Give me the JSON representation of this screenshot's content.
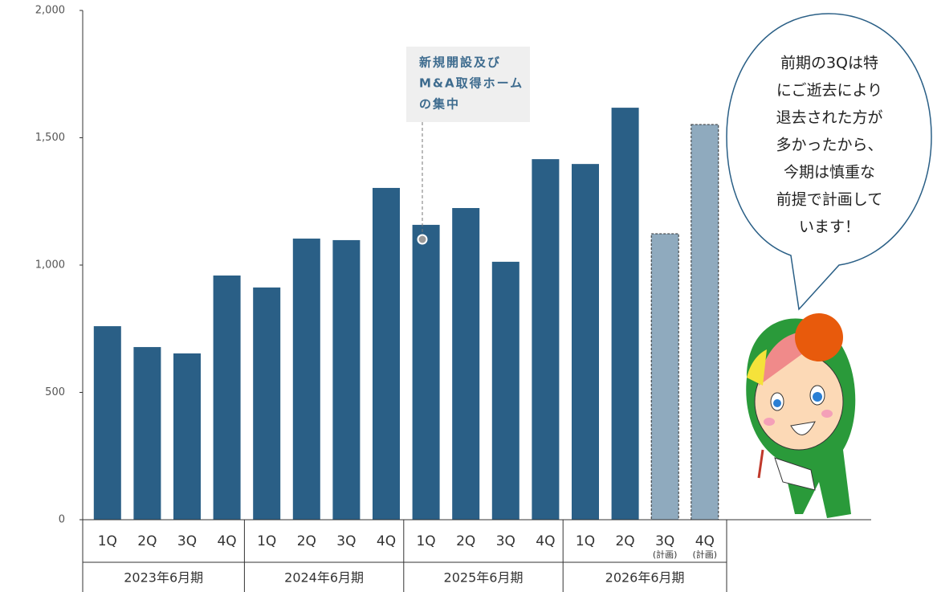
{
  "chart_data": {
    "type": "bar",
    "categories": [
      "1Q",
      "2Q",
      "3Q",
      "4Q",
      "1Q",
      "2Q",
      "3Q",
      "4Q",
      "1Q",
      "2Q",
      "3Q",
      "4Q",
      "1Q",
      "2Q",
      "3Q",
      "4Q"
    ],
    "category_notes": [
      null,
      null,
      null,
      null,
      null,
      null,
      null,
      null,
      null,
      null,
      null,
      null,
      null,
      null,
      "(計画)",
      "(計画)"
    ],
    "groups": [
      {
        "label": "2023年6月期",
        "span": 4
      },
      {
        "label": "2024年6月期",
        "span": 4
      },
      {
        "label": "2025年6月期",
        "span": 4
      },
      {
        "label": "2026年6月期",
        "span": 4
      }
    ],
    "values": [
      760,
      678,
      653,
      959,
      912,
      1104,
      1098,
      1303,
      1158,
      1224,
      1013,
      1416,
      1397,
      1618,
      1123,
      1552
    ],
    "colors": [
      "#2a5f86",
      "#2a5f86",
      "#2a5f86",
      "#2a5f86",
      "#2a5f86",
      "#2a5f86",
      "#2a5f86",
      "#2a5f86",
      "#2a5f86",
      "#2a5f86",
      "#2a5f86",
      "#2a5f86",
      "#2a5f86",
      "#2a5f86",
      "#8faabe",
      "#8faabe"
    ],
    "dashed": [
      false,
      false,
      false,
      false,
      false,
      false,
      false,
      false,
      false,
      false,
      false,
      false,
      false,
      false,
      true,
      true
    ],
    "ylim": [
      0,
      2000
    ],
    "yticks": [
      0,
      {
        "value": 500,
        "label": "500"
      },
      {
        "value": 1000,
        "label": "1,000"
      },
      {
        "value": 1500,
        "label": "1,500"
      },
      {
        "value": 2000,
        "label": "2,000"
      }
    ],
    "grid": false,
    "annotation": [
      "新規開設及び",
      "M&A取得ホーム",
      "の集中"
    ],
    "callout": [
      "前期の3Qは特",
      "にご逝去により",
      "退去された方が",
      "多かったから、",
      "今期は慎重な",
      "前提で計画して",
      "います！"
    ]
  }
}
